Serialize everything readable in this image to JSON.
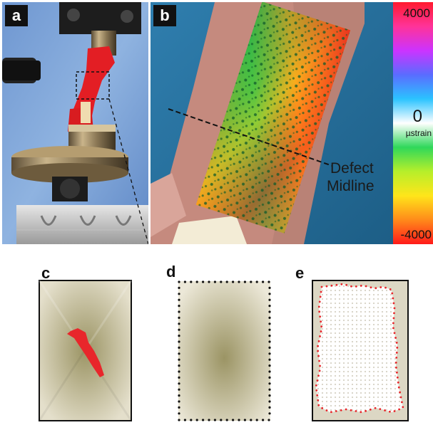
{
  "panels": {
    "a": {
      "label": "a"
    },
    "b": {
      "label": "b",
      "annotation_line1": "Defect",
      "annotation_line2": "Midline"
    },
    "c": {
      "label": "c"
    },
    "d": {
      "label": "d"
    },
    "e": {
      "label": "e"
    }
  },
  "colorbar": {
    "max_label": "4000",
    "mid_label": "0",
    "unit_label": "µstrain",
    "min_label": "-4000",
    "stops": [
      "#ff1a2e",
      "#ff3399",
      "#cc33ff",
      "#5a6cff",
      "#2bc3ff",
      "#ffffff",
      "#2fd85a",
      "#b7ef2a",
      "#ffe51a",
      "#ff8a1a",
      "#ff1a1a"
    ]
  },
  "colors": {
    "red_marker": "#e8262b",
    "beige_base": "#d9d4bd",
    "olive_center": "#9b9464"
  }
}
